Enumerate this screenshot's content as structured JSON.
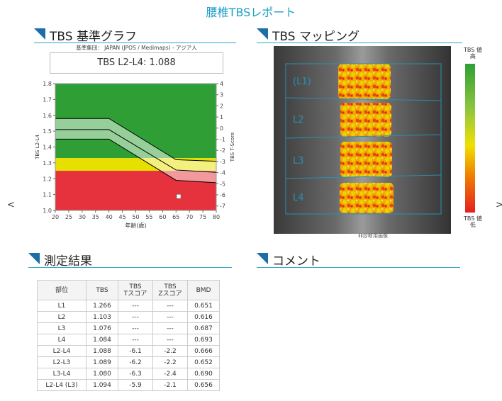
{
  "header": {
    "title": "腰椎TBSレポート"
  },
  "nav": {
    "prev": "<",
    "next": ">"
  },
  "graph_section": {
    "title": "TBS 基準グラフ",
    "reference": "基準集団： JAPAN (JPOS / Medimaps) - アジア人",
    "result": "TBS  L2-L4: 1.088"
  },
  "chart_data": {
    "type": "line",
    "y_label": "TBS L2-L4",
    "y2_label": "TBS T-Score",
    "x_label": "年齢(歳)",
    "xlim": [
      20,
      80
    ],
    "xticks": [
      20,
      25,
      30,
      35,
      40,
      45,
      50,
      55,
      60,
      65,
      70,
      75,
      80
    ],
    "ylim": [
      1.0,
      1.8
    ],
    "yticks": [
      {
        "value": 1,
        "label": "1.0"
      },
      1.1,
      1.2,
      1.3,
      1.4,
      1.5,
      1.6,
      1.7,
      1.8
    ],
    "y2lim": [
      -7.4,
      4
    ],
    "y2ticks": [
      4,
      3,
      2,
      1,
      0,
      -1,
      -2,
      -3,
      -4,
      -5,
      -6,
      -7
    ],
    "zones": [
      {
        "from": 1.33,
        "to": 1.8,
        "color": "#2f9f35"
      },
      {
        "from": 1.25,
        "to": 1.33,
        "color": "#e6e000"
      },
      {
        "from": 1.0,
        "to": 1.25,
        "color": "#e5323c"
      }
    ],
    "band_color": "rgba(255,255,255,0.5)",
    "x": [
      20,
      40,
      65,
      80
    ],
    "series": [
      {
        "color": "#000000",
        "values": [
          1.58,
          1.58,
          1.32,
          1.31
        ]
      },
      {
        "color": "#000000",
        "values": [
          1.51,
          1.51,
          1.255,
          1.24
        ]
      },
      {
        "color": "#000000",
        "values": [
          1.45,
          1.45,
          1.19,
          1.175
        ]
      }
    ],
    "points": [
      {
        "x": 66,
        "y": 1.088
      }
    ],
    "point_color": "#ffffff"
  },
  "mapping_section": {
    "title": "TBS マッピング",
    "labels": [
      "(L1)",
      "L2",
      "L3",
      "L4"
    ],
    "caption": "非診断用画像",
    "scale_high": [
      "TBS 値",
      "高"
    ],
    "scale_low": [
      "TBS 値",
      "低"
    ]
  },
  "results": {
    "title": "測定結果",
    "table": {
      "header": [
        [
          "部位"
        ],
        [
          "TBS"
        ],
        [
          "TBS",
          "Tスコア"
        ],
        [
          "TBS",
          "Zスコア"
        ],
        [
          "BMD"
        ]
      ],
      "rows": [
        [
          "L1",
          "1.266",
          "---",
          "---",
          "0.651"
        ],
        [
          "L2",
          "1.103",
          "---",
          "---",
          "0.616"
        ],
        [
          "L3",
          "1.076",
          "---",
          "---",
          "0.687"
        ],
        [
          "L4",
          "1.084",
          "---",
          "---",
          "0.693"
        ],
        [
          "L2-L4",
          "1.088",
          "-6.1",
          "-2.2",
          "0.666"
        ],
        [
          "L2-L3",
          "1.089",
          "-6.2",
          "-2.2",
          "0.652"
        ],
        [
          "L3-L4",
          "1.080",
          "-6.3",
          "-2.4",
          "0.690"
        ],
        [
          "L2-L4 (L3)",
          "1.094",
          "-5.9",
          "-2.1",
          "0.656"
        ]
      ]
    }
  },
  "comment": {
    "title": "コメント"
  }
}
